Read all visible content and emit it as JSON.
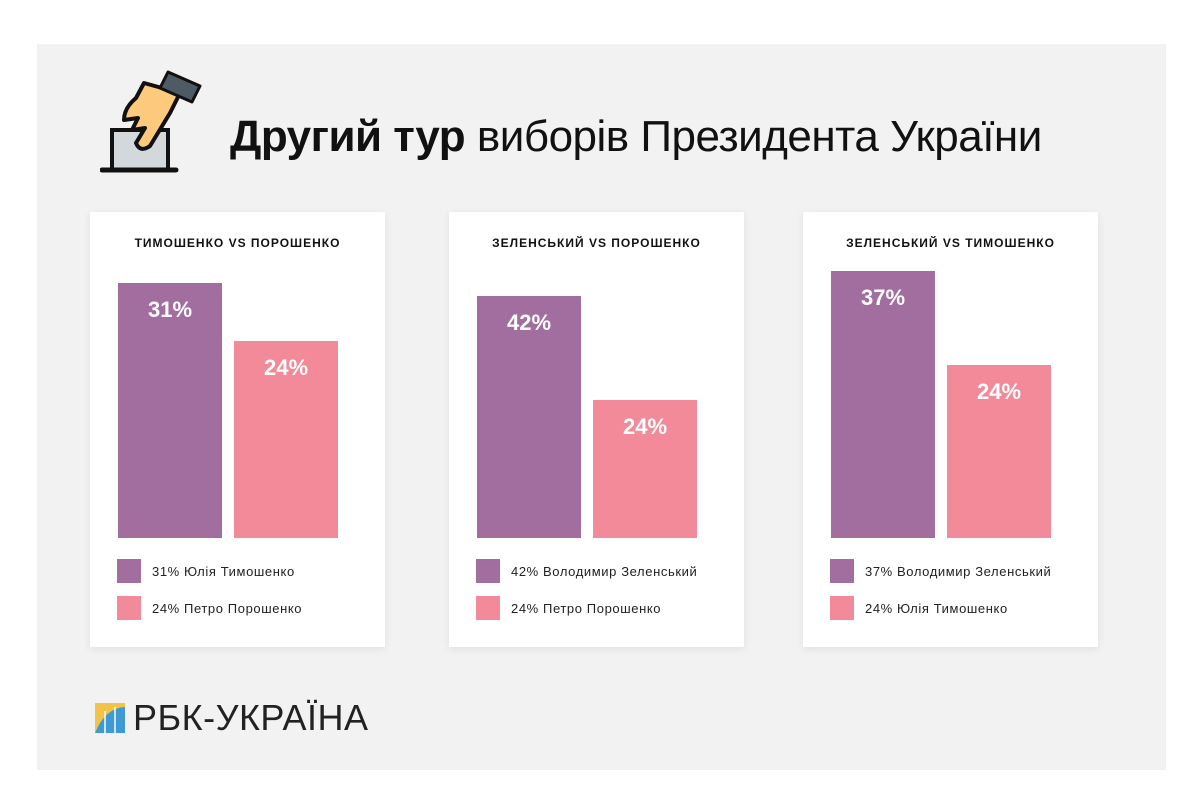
{
  "title": {
    "bold": "Другий тур",
    "rest": " виборів Президента України"
  },
  "logo": "РБК-УКРАЇНА",
  "colors": {
    "purple": "#a26e9f",
    "pink": "#f28a9a",
    "background": "#f2f2f2"
  },
  "chart_data": [
    {
      "type": "bar",
      "title": "ТИМОШЕНКО VS ПОРОШЕНКО",
      "categories": [
        "Юлія Тимошенко",
        "Петро Порошенко"
      ],
      "values": [
        31,
        24
      ],
      "labels": [
        "31%",
        "24%"
      ],
      "legend": [
        "31% Юлія Тимошенко",
        "24% Петро Порошенко"
      ],
      "ylim": [
        0,
        34.4
      ]
    },
    {
      "type": "bar",
      "title": "ЗЕЛЕНСЬКИЙ VS ПОРОШЕНКО",
      "categories": [
        "Володимир Зеленський",
        "Петро Порошенко"
      ],
      "values": [
        42,
        24
      ],
      "labels": [
        "42%",
        "24%"
      ],
      "legend": [
        "42% Володимир Зеленський",
        "24% Петро Порошенко"
      ],
      "ylim": [
        0,
        49.1
      ]
    },
    {
      "type": "bar",
      "title": "ЗЕЛЕНСЬКИЙ VS ТИМОШЕНКО",
      "categories": [
        "Володимир Зеленський",
        "Юлія Тимошенко"
      ],
      "values": [
        37,
        24
      ],
      "labels": [
        "37%",
        "24%"
      ],
      "legend": [
        "37% Володимир Зеленський",
        "24% Юлія Тимошенко"
      ],
      "ylim": [
        0,
        39.2
      ]
    }
  ]
}
